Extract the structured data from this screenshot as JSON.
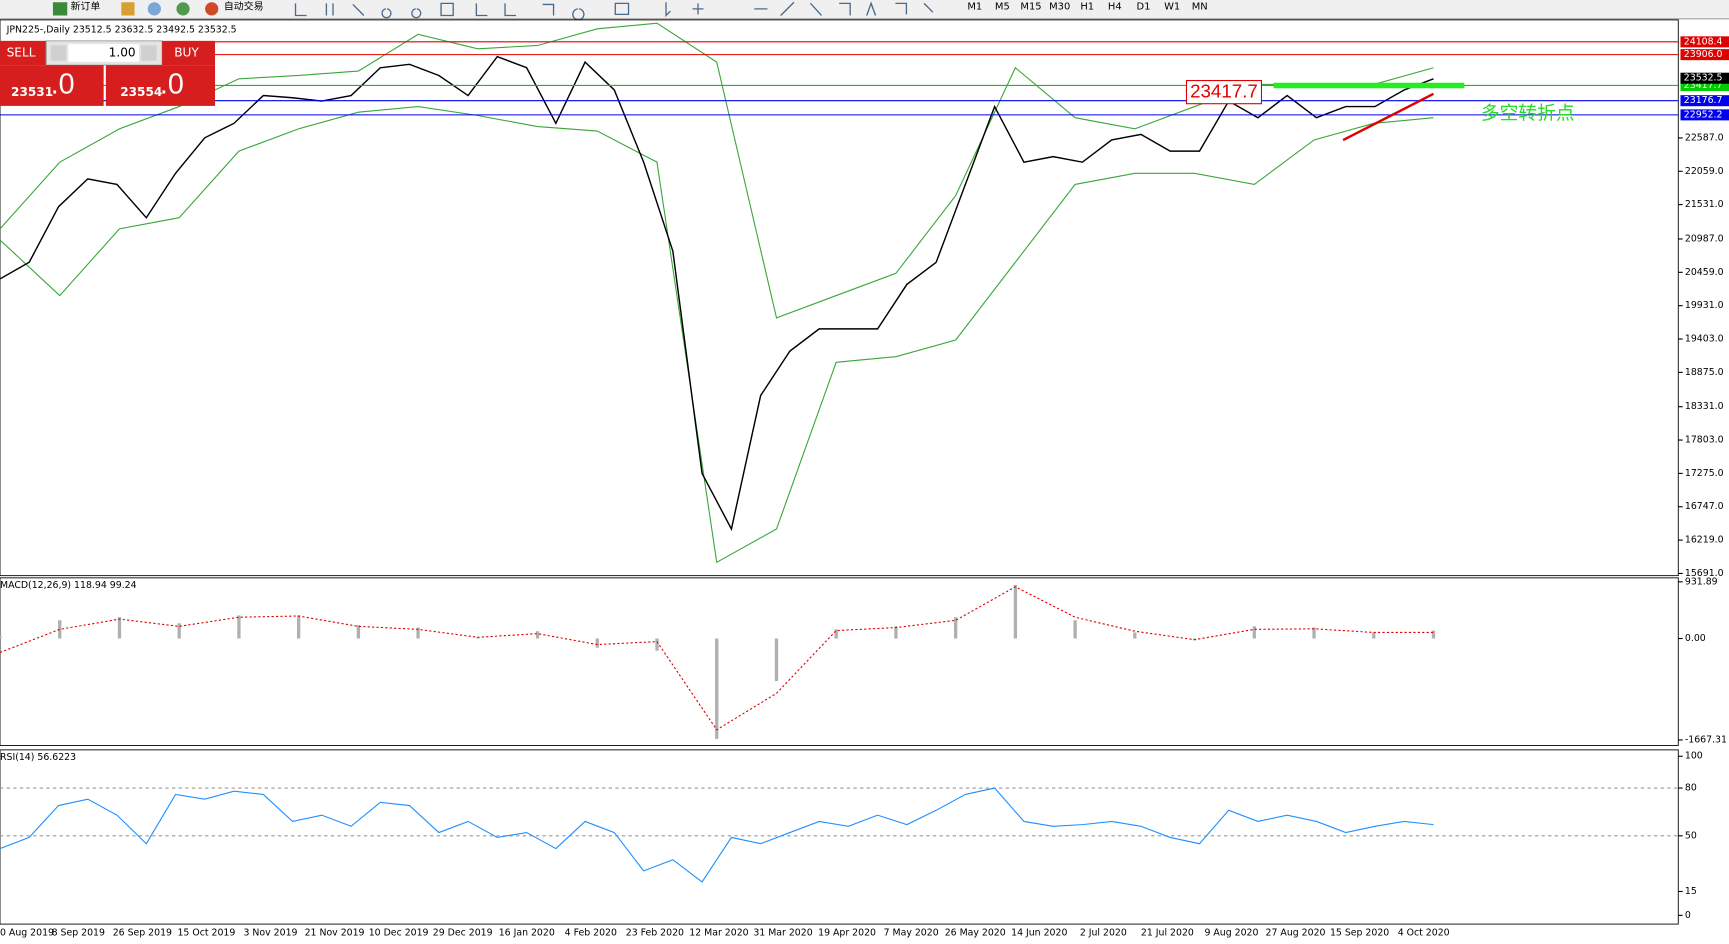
{
  "toolbar": {
    "new_order": "新订单",
    "auto_trading": "自动交易",
    "timeframes": [
      "M1",
      "M5",
      "M15",
      "M30",
      "H1",
      "H4",
      "D1",
      "W1",
      "MN"
    ]
  },
  "trade_panel": {
    "sell": "SELL",
    "lot": "1.00",
    "buy": "BUY",
    "sell_price": "23531",
    "sell_fraction": ".0",
    "buy_price": "23554",
    "buy_fraction": ".0"
  },
  "price_chart": {
    "header": "JPN225-,Daily  23512.5 23632.5 23492.5 23532.5",
    "annotation_price": "23417.7",
    "annotation_note": "多空转折点",
    "ylim": [
      15656,
      24456
    ],
    "yticks": [
      {
        "value": 22587,
        "label": "22587.0"
      },
      {
        "value": 22059,
        "label": "22059.0"
      },
      {
        "value": 21531,
        "label": "21531.0"
      },
      {
        "value": 20987,
        "label": "20987.0"
      },
      {
        "value": 20459,
        "label": "20459.0"
      },
      {
        "value": 19931,
        "label": "19931.0"
      },
      {
        "value": 19403,
        "label": "19403.0"
      },
      {
        "value": 18875,
        "label": "18875.0"
      },
      {
        "value": 18331,
        "label": "18331.0"
      },
      {
        "value": 17803,
        "label": "17803.0"
      },
      {
        "value": 17275,
        "label": "17275.0"
      },
      {
        "value": 16747,
        "label": "16747.0"
      },
      {
        "value": 16219,
        "label": "16219.0"
      },
      {
        "value": 15691,
        "label": "15691.0"
      }
    ],
    "levels": [
      {
        "value": 24108.4,
        "label": "24108.4",
        "color": "#e00000"
      },
      {
        "value": 23906,
        "label": "23906.0",
        "color": "#e00000"
      },
      {
        "value": 23417.7,
        "label": "23417.7",
        "color": "#00cc00"
      },
      {
        "value": 23176.7,
        "label": "23176.7",
        "color": "#0000ee"
      },
      {
        "value": 22952.2,
        "label": "22952.2",
        "color": "#0000ee"
      }
    ],
    "current_price": {
      "value": 23532.5,
      "label": "23532.5"
    },
    "price_color": "#000000",
    "band_color": "#3aa63a",
    "closes": [
      20355,
      20619,
      21499,
      21939,
      21851,
      21323,
      22027,
      22590,
      22819,
      23259,
      23224,
      23171,
      23259,
      23699,
      23752,
      23576,
      23259,
      23875,
      23699,
      22819,
      23787,
      23347,
      22203,
      20795,
      17275,
      16395,
      18507,
      19211,
      19563,
      19563,
      19563,
      20267,
      20619,
      21851,
      23083,
      22203,
      22291,
      22203,
      22555,
      22643,
      22379,
      22379,
      23171,
      22907,
      23259,
      22907,
      23083,
      23083,
      23347,
      23523
    ],
    "upper_band": [
      21147,
      22203,
      22731,
      23083,
      23523,
      23576,
      23646,
      24227,
      23998,
      24051,
      24315,
      24403,
      23787,
      19739,
      20091,
      20443,
      21675,
      23699,
      22907,
      22731,
      23083,
      23435,
      23435,
      23435,
      23699
    ],
    "lower_band": [
      20971,
      20091,
      21147,
      21323,
      22379,
      22731,
      22995,
      23083,
      22943,
      22767,
      22696,
      22203,
      15867,
      16395,
      19035,
      19123,
      19387,
      20619,
      21851,
      22027,
      22027,
      21851,
      22555,
      22819,
      22907
    ]
  },
  "x_labels": [
    "0 Aug 2019",
    "8 Sep 2019",
    "26 Sep 2019",
    "15 Oct 2019",
    "3 Nov 2019",
    "21 Nov 2019",
    "10 Dec 2019",
    "29 Dec 2019",
    "16 Jan 2020",
    "4 Feb 2020",
    "23 Feb 2020",
    "12 Mar 2020",
    "31 Mar 2020",
    "19 Apr 2020",
    "7 May 2020",
    "26 May 2020",
    "14 Jun 2020",
    "2 Jul 2020",
    "21 Jul 2020",
    "9 Aug 2020",
    "27 Aug 2020",
    "15 Sep 2020",
    "4 Oct 2020"
  ],
  "macd": {
    "header": "MACD(12,26,9) 118.94 99.24",
    "ylim": [
      -1758,
      997
    ],
    "yticks": [
      931.89,
      {
        "value": 0,
        "label": "0.00"
      },
      -1667.31
    ],
    "histogram_color": "#b0b0b0",
    "signal_color": "#e00000",
    "histogram": [
      40,
      300,
      350,
      250,
      380,
      380,
      220,
      180,
      20,
      120,
      -150,
      -200,
      -1650,
      -700,
      150,
      200,
      350,
      880,
      300,
      100,
      -30,
      200,
      180,
      100,
      130
    ],
    "signal": [
      -230,
      150,
      320,
      200,
      350,
      370,
      200,
      150,
      20,
      80,
      -100,
      -50,
      -1500,
      -900,
      130,
      180,
      300,
      850,
      350,
      120,
      -20,
      150,
      160,
      100,
      100
    ]
  },
  "rsi": {
    "header": "RSI(14) 56.6223",
    "ylim": [
      -5.5,
      104
    ],
    "yticks": [
      100,
      80,
      50,
      15,
      0
    ],
    "gridlines": [
      80,
      50
    ],
    "color": "#1e90ff",
    "values": [
      42,
      49,
      69,
      73,
      63,
      45,
      76,
      73,
      78,
      76,
      59,
      63,
      56,
      71,
      69,
      52,
      59,
      49,
      52,
      42,
      59,
      52,
      28,
      35,
      21,
      49,
      45,
      52,
      59,
      56,
      63,
      57,
      66,
      76,
      80,
      59,
      56,
      57,
      59,
      56,
      49,
      45,
      66,
      59,
      63,
      59,
      52,
      56,
      59,
      57
    ]
  }
}
